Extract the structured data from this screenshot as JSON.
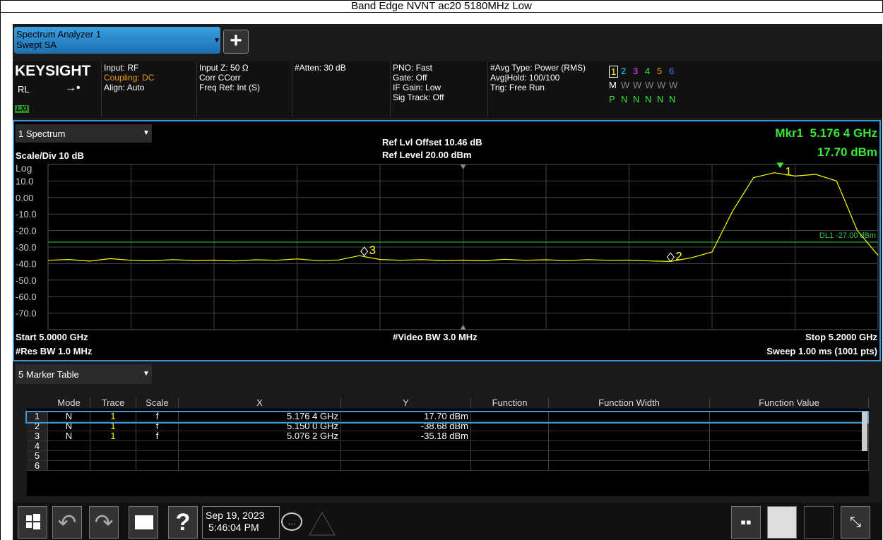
{
  "title": "Band Edge NVNT ac20 5180MHz Low",
  "tab": {
    "name": "Spectrum Analyzer 1",
    "mode": "Swept SA"
  },
  "settings": {
    "brand": "KEYSIGHT",
    "rl": "RL",
    "lxi": "LXI",
    "columns": [
      [
        "Input: RF",
        "Coupling: DC",
        "Align: Auto"
      ],
      [
        "Input Z: 50 Ω",
        "Corr CCorr",
        "Freq Ref: Int (S)"
      ],
      [
        "#Atten: 30 dB"
      ],
      [
        "PNO: Fast",
        "Gate: Off",
        "IF Gain: Low",
        "Sig Track: Off"
      ],
      [
        "#Avg Type: Power (RMS)",
        "Avg|Hold: 100/100",
        "Trig: Free Run"
      ]
    ],
    "trace_numbers": [
      "1",
      "2",
      "3",
      "4",
      "5",
      "6"
    ],
    "trace_types": [
      "M",
      "W",
      "W",
      "W",
      "W",
      "W"
    ],
    "trace_detectors": [
      "P",
      "N",
      "N",
      "N",
      "N",
      "N"
    ]
  },
  "window": {
    "name": "1 Spectrum",
    "scale": "Scale/Div 10 dB",
    "log": "Log",
    "ref_offset": "Ref Lvl Offset 10.46 dB",
    "ref_level": "Ref Level 20.00 dBm",
    "marker_label": "Mkr1",
    "marker_x": "5.176 4 GHz",
    "marker_y": "17.70 dBm",
    "start": "Start 5.0000 GHz",
    "res_bw": "#Res BW 1.0 MHz",
    "video_bw": "#Video BW 3.0 MHz",
    "stop": "Stop 5.2000 GHz",
    "sweep": "Sweep 1.00 ms (1001 pts)"
  },
  "chart_data": {
    "type": "line",
    "color": "#ffff00",
    "x": [
      5.0,
      5.005,
      5.01,
      5.015,
      5.02,
      5.025,
      5.03,
      5.035,
      5.04,
      5.045,
      5.05,
      5.055,
      5.06,
      5.065,
      5.07,
      5.075,
      5.08,
      5.085,
      5.09,
      5.095,
      5.1,
      5.105,
      5.11,
      5.115,
      5.12,
      5.125,
      5.13,
      5.135,
      5.14,
      5.145,
      5.15,
      5.155,
      5.16,
      5.165,
      5.17,
      5.175,
      5.18,
      5.185,
      5.19,
      5.195,
      5.2
    ],
    "values": [
      -38,
      -37.5,
      -38.5,
      -37,
      -38,
      -38.3,
      -37.6,
      -38.1,
      -37.9,
      -38.4,
      -37.7,
      -38,
      -37.2,
      -38.2,
      -37.8,
      -35.2,
      -37.5,
      -38,
      -37.6,
      -38.1,
      -37.9,
      -38.3,
      -37.4,
      -38,
      -37.7,
      -38.2,
      -37.6,
      -38,
      -37.9,
      -38.4,
      -38.7,
      -36.5,
      -33,
      -8,
      12,
      15,
      13,
      14,
      10,
      -20,
      -35
    ],
    "xlim": [
      5.0,
      5.2
    ],
    "ylim": [
      -80,
      20
    ],
    "yticks": [
      {
        "value": 10,
        "label": "10.0"
      },
      {
        "value": 0,
        "label": "0.00"
      },
      {
        "value": -10,
        "label": "-10.0"
      },
      {
        "value": -20,
        "label": "-20.0"
      },
      {
        "value": -30,
        "label": "-30.0"
      },
      {
        "value": -40,
        "label": "-40.0"
      },
      {
        "value": -50,
        "label": "-50.0"
      },
      {
        "value": -60,
        "label": "-60.0"
      },
      {
        "value": -70,
        "label": "-70.0"
      }
    ],
    "grid": true,
    "display_line": {
      "value": -27,
      "label": "DL1 -27.00 dBm",
      "color": "#2ecc40"
    },
    "markers": [
      {
        "label": "1",
        "x": 5.1764,
        "y": 17.7
      },
      {
        "label": "2",
        "x": 5.15,
        "y": -38.68
      },
      {
        "label": "3",
        "x": 5.0762,
        "y": -35.18
      }
    ]
  },
  "marker_table": {
    "name": "5 Marker Table",
    "columns": [
      "Mode",
      "Trace",
      "Scale",
      "X",
      "Y",
      "Function",
      "Function Width",
      "Function Value"
    ],
    "rows": [
      [
        "1",
        "N",
        "1",
        "f",
        "5.176 4 GHz",
        "17.70 dBm"
      ],
      [
        "2",
        "N",
        "1",
        "f",
        "5.150 0 GHz",
        "-38.68 dBm"
      ],
      [
        "3",
        "N",
        "1",
        "f",
        "5.076 2 GHz",
        "-35.18 dBm"
      ],
      [
        "4"
      ],
      [
        "5"
      ],
      [
        "6"
      ]
    ]
  },
  "toolbar": {
    "date": "Sep 19, 2023",
    "time": "5:46:04 PM"
  }
}
